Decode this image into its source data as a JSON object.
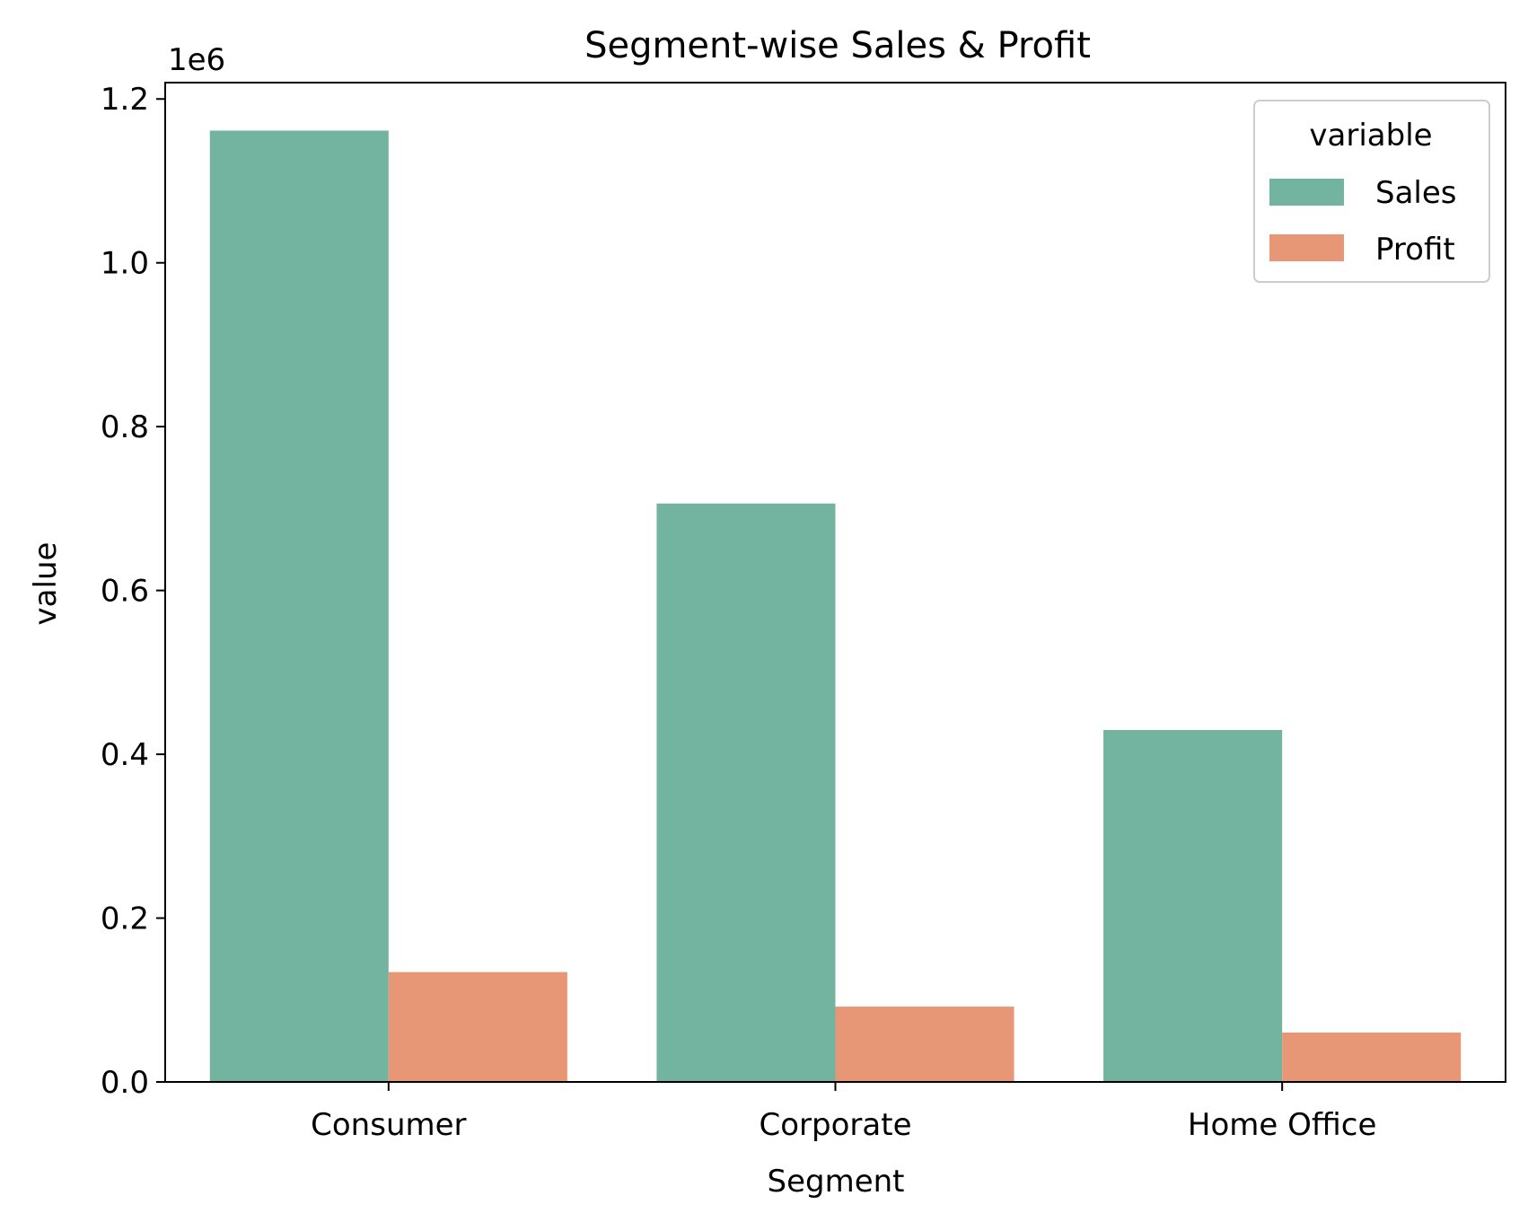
{
  "colors": {
    "sales": "#73b4a0",
    "profit": "#e89776",
    "axis": "#000000",
    "legend_border": "#cccccc",
    "background": "#ffffff"
  },
  "chart_data": {
    "type": "bar",
    "title": "Segment-wise Sales & Profit",
    "xlabel": "Segment",
    "ylabel": "value",
    "y_offset_text": "1e6",
    "categories": [
      "Consumer",
      "Corporate",
      "Home Office"
    ],
    "series": [
      {
        "name": "Sales",
        "values": [
          1161401,
          706146,
          429653
        ]
      },
      {
        "name": "Profit",
        "values": [
          134119,
          91979,
          60299
        ]
      }
    ],
    "ylim": [
      0,
      1.22
    ],
    "y_scale": 1000000,
    "yticks": [
      0.0,
      0.2,
      0.4,
      0.6,
      0.8,
      1.0,
      1.2
    ],
    "ytick_labels": [
      "0.0",
      "0.2",
      "0.4",
      "0.6",
      "0.8",
      "1.0",
      "1.2"
    ],
    "grid": false,
    "legend": {
      "title": "variable",
      "placement": "top-right",
      "entries": [
        "Sales",
        "Profit"
      ]
    }
  }
}
